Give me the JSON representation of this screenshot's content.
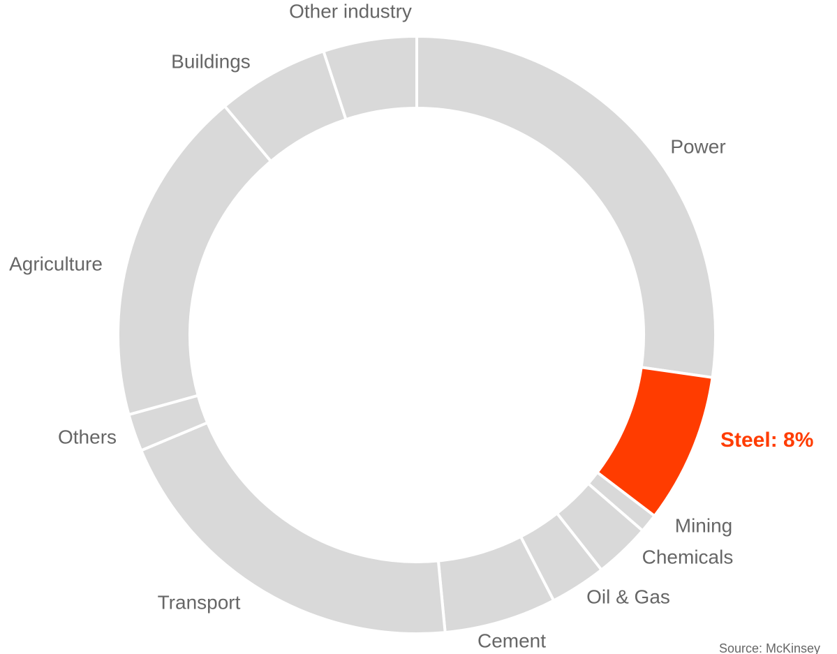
{
  "chart_data": {
    "type": "donut",
    "categories": [
      "Power",
      "Steel: 8%",
      "Mining",
      "Chemicals",
      "Oil & Gas",
      "Cement",
      "Transport",
      "Others",
      "Agriculture",
      "Buildings",
      "Other industry"
    ],
    "values": [
      27,
      8,
      1,
      3,
      3,
      6,
      20,
      2,
      18,
      6,
      5
    ],
    "colors": [
      "#d9d9d9",
      "#ff3c00",
      "#d9d9d9",
      "#d9d9d9",
      "#d9d9d9",
      "#d9d9d9",
      "#d9d9d9",
      "#d9d9d9",
      "#d9d9d9",
      "#d9d9d9",
      "#d9d9d9"
    ],
    "highlight": "Steel: 8%",
    "source": "Source: McKinsey"
  }
}
